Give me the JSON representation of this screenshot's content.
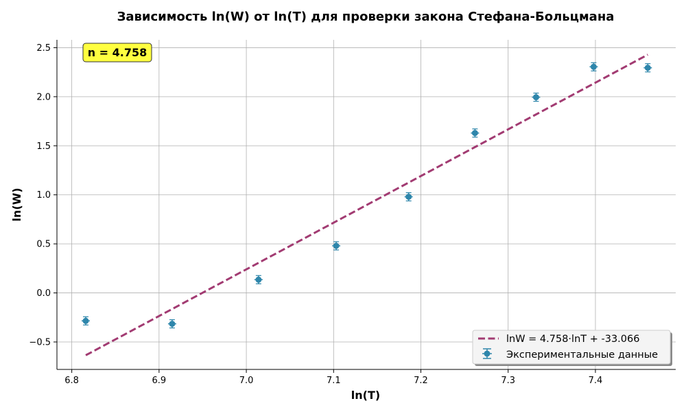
{
  "chart_data": {
    "type": "scatter",
    "title": "Зависимость ln(W) от ln(T) для проверки закона Стефана-Больцмана",
    "xlabel": "ln(T)",
    "ylabel": "ln(W)",
    "xlim": [
      6.783,
      7.492
    ],
    "ylim": [
      -0.78,
      2.58
    ],
    "x_ticks": [
      6.8,
      6.9,
      7.0,
      7.1,
      7.2,
      7.3,
      7.4
    ],
    "x_tick_labels": [
      "6.8",
      "6.9",
      "7.0",
      "7.1",
      "7.2",
      "7.3",
      "7.4"
    ],
    "y_ticks": [
      -0.5,
      0.0,
      0.5,
      1.0,
      1.5,
      2.0,
      2.5
    ],
    "y_tick_labels": [
      "−0.5",
      "0.0",
      "0.5",
      "1.0",
      "1.5",
      "2.0",
      "2.5"
    ],
    "grid": true,
    "legend_position": "lower-right",
    "annotation": "n = 4.758",
    "series": [
      {
        "name": "Экспериментальные данные",
        "kind": "errorbar-scatter",
        "color": "#2e86ab",
        "x": [
          6.816,
          6.915,
          7.014,
          7.103,
          7.186,
          7.262,
          7.332,
          7.398,
          7.46
        ],
        "y": [
          -0.285,
          -0.315,
          0.135,
          0.48,
          0.98,
          1.63,
          1.995,
          2.305,
          2.295
        ]
      },
      {
        "name": "lnW = 4.758·lnT + -33.066",
        "kind": "line",
        "color": "#a23b72",
        "slope": 4.758,
        "intercept": -33.066,
        "x_range": [
          6.816,
          7.46
        ]
      }
    ]
  },
  "colors": {
    "annotation_background": "#ffff40",
    "legend_background": "#f4f4f4"
  }
}
